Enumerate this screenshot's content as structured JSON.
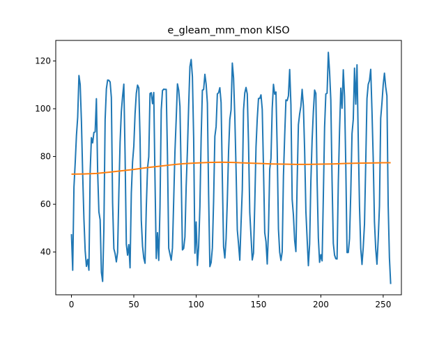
{
  "chart_data": {
    "type": "line",
    "title": "e_gleam_mm_mon KISO",
    "xlabel": "",
    "ylabel": "",
    "xlim": [
      -12.6,
      264.6
    ],
    "ylim": [
      22.1,
      128.6
    ],
    "x_ticks": [
      0,
      50,
      100,
      150,
      200,
      250
    ],
    "y_ticks": [
      40,
      60,
      80,
      100,
      120
    ],
    "grid": false,
    "legend": "none",
    "series": [
      {
        "color": "#1f77b4",
        "points": [
          [
            0,
            47.5
          ],
          [
            1,
            32.4
          ],
          [
            2,
            67.2
          ],
          [
            3,
            77.3
          ],
          [
            4,
            88.8
          ],
          [
            5,
            96.5
          ],
          [
            6,
            113.9
          ],
          [
            7,
            110.1
          ],
          [
            8,
            94.6
          ],
          [
            9,
            72.6
          ],
          [
            10,
            53.8
          ],
          [
            11,
            40.5
          ],
          [
            12,
            34.0
          ],
          [
            13,
            36.9
          ],
          [
            14,
            32.4
          ],
          [
            15,
            73.7
          ],
          [
            16,
            87.9
          ],
          [
            17,
            85.7
          ],
          [
            18,
            90.1
          ],
          [
            19,
            90.3
          ],
          [
            20,
            104.2
          ],
          [
            21,
            73.7
          ],
          [
            22,
            56.8
          ],
          [
            23,
            53.5
          ],
          [
            24,
            31.5
          ],
          [
            25,
            27.7
          ],
          [
            26,
            49.6
          ],
          [
            27,
            95.4
          ],
          [
            28,
            108.3
          ],
          [
            29,
            112.0
          ],
          [
            30,
            111.9
          ],
          [
            31,
            111.2
          ],
          [
            32,
            104.7
          ],
          [
            33,
            60.5
          ],
          [
            34,
            41.4
          ],
          [
            35,
            39.3
          ],
          [
            36,
            35.9
          ],
          [
            37,
            39.9
          ],
          [
            38,
            64.6
          ],
          [
            39,
            86.0
          ],
          [
            40,
            98.8
          ],
          [
            41,
            105.2
          ],
          [
            42,
            110.3
          ],
          [
            43,
            80.6
          ],
          [
            44,
            43.3
          ],
          [
            45,
            38.7
          ],
          [
            46,
            43.1
          ],
          [
            47,
            33.4
          ],
          [
            48,
            64.6
          ],
          [
            49,
            77.7
          ],
          [
            50,
            84.3
          ],
          [
            51,
            97.8
          ],
          [
            52,
            106.4
          ],
          [
            53,
            109.9
          ],
          [
            54,
            108.7
          ],
          [
            55,
            88.0
          ],
          [
            56,
            53.3
          ],
          [
            57,
            42.4
          ],
          [
            58,
            37.4
          ],
          [
            59,
            35.3
          ],
          [
            60,
            58.4
          ],
          [
            61,
            75.0
          ],
          [
            62,
            79.9
          ],
          [
            63,
            106.4
          ],
          [
            64,
            106.7
          ],
          [
            65,
            102.1
          ],
          [
            66,
            106.8
          ],
          [
            67,
            70.2
          ],
          [
            68,
            37.3
          ],
          [
            69,
            48.1
          ],
          [
            70,
            36.5
          ],
          [
            71,
            58.7
          ],
          [
            72,
            99.5
          ],
          [
            73,
            107.6
          ],
          [
            74,
            108.2
          ],
          [
            75,
            108.1
          ],
          [
            76,
            108.1
          ],
          [
            77,
            80.4
          ],
          [
            78,
            41.6
          ],
          [
            79,
            39.1
          ],
          [
            80,
            36.6
          ],
          [
            81,
            41.7
          ],
          [
            82,
            61.9
          ],
          [
            83,
            82.1
          ],
          [
            84,
            95.7
          ],
          [
            85,
            110.4
          ],
          [
            86,
            107.8
          ],
          [
            87,
            101.0
          ],
          [
            88,
            71.9
          ],
          [
            89,
            40.9
          ],
          [
            90,
            41.5
          ],
          [
            91,
            46.3
          ],
          [
            92,
            67.6
          ],
          [
            93,
            82.6
          ],
          [
            94,
            101.3
          ],
          [
            95,
            117.6
          ],
          [
            96,
            120.6
          ],
          [
            97,
            113.4
          ],
          [
            98,
            87.7
          ],
          [
            99,
            39.5
          ],
          [
            100,
            52.6
          ],
          [
            101,
            34.4
          ],
          [
            102,
            42.2
          ],
          [
            103,
            59.0
          ],
          [
            104,
            87.6
          ],
          [
            105,
            107.8
          ],
          [
            106,
            108.0
          ],
          [
            107,
            114.4
          ],
          [
            108,
            110.3
          ],
          [
            109,
            102.4
          ],
          [
            110,
            63.9
          ],
          [
            111,
            33.9
          ],
          [
            112,
            35.6
          ],
          [
            113,
            41.7
          ],
          [
            114,
            61.5
          ],
          [
            115,
            88.4
          ],
          [
            116,
            92.5
          ],
          [
            117,
            106.2
          ],
          [
            118,
            106.7
          ],
          [
            119,
            108.8
          ],
          [
            120,
            102.6
          ],
          [
            121,
            71.1
          ],
          [
            122,
            42.2
          ],
          [
            123,
            37.5
          ],
          [
            124,
            45.5
          ],
          [
            125,
            61.8
          ],
          [
            126,
            82.1
          ],
          [
            127,
            95.5
          ],
          [
            128,
            99.5
          ],
          [
            129,
            119.1
          ],
          [
            130,
            112.9
          ],
          [
            131,
            96.8
          ],
          [
            132,
            74.7
          ],
          [
            133,
            49.3
          ],
          [
            134,
            43.3
          ],
          [
            135,
            36.6
          ],
          [
            136,
            51.9
          ],
          [
            137,
            66.1
          ],
          [
            138,
            99.5
          ],
          [
            139,
            106.6
          ],
          [
            140,
            108.9
          ],
          [
            141,
            106.2
          ],
          [
            142,
            85.5
          ],
          [
            143,
            56.5
          ],
          [
            144,
            46.6
          ],
          [
            145,
            36.7
          ],
          [
            146,
            39.6
          ],
          [
            147,
            60.0
          ],
          [
            148,
            84.0
          ],
          [
            149,
            95.8
          ],
          [
            150,
            104.3
          ],
          [
            151,
            104.3
          ],
          [
            152,
            105.8
          ],
          [
            153,
            99.7
          ],
          [
            154,
            75.2
          ],
          [
            155,
            48.1
          ],
          [
            156,
            44.4
          ],
          [
            157,
            35.0
          ],
          [
            158,
            48.8
          ],
          [
            159,
            74.7
          ],
          [
            160,
            79.1
          ],
          [
            161,
            100.2
          ],
          [
            162,
            110.2
          ],
          [
            163,
            106.1
          ],
          [
            164,
            107.0
          ],
          [
            165,
            83.3
          ],
          [
            166,
            49.6
          ],
          [
            167,
            39.9
          ],
          [
            168,
            36.5
          ],
          [
            169,
            40.1
          ],
          [
            170,
            71.8
          ],
          [
            171,
            88.6
          ],
          [
            172,
            103.7
          ],
          [
            173,
            103.4
          ],
          [
            174,
            105.4
          ],
          [
            175,
            116.4
          ],
          [
            176,
            101.7
          ],
          [
            177,
            62.0
          ],
          [
            178,
            55.5
          ],
          [
            179,
            44.9
          ],
          [
            180,
            40.2
          ],
          [
            181,
            69.4
          ],
          [
            182,
            93.3
          ],
          [
            183,
            97.8
          ],
          [
            184,
            101.1
          ],
          [
            185,
            108.1
          ],
          [
            186,
            101.2
          ],
          [
            187,
            82.5
          ],
          [
            188,
            57.1
          ],
          [
            189,
            45.5
          ],
          [
            190,
            34.3
          ],
          [
            191,
            43.4
          ],
          [
            192,
            69.8
          ],
          [
            193,
            86.9
          ],
          [
            194,
            98.8
          ],
          [
            195,
            107.8
          ],
          [
            196,
            106.4
          ],
          [
            197,
            69.8
          ],
          [
            198,
            45.9
          ],
          [
            199,
            35.7
          ],
          [
            200,
            38.9
          ],
          [
            201,
            36.3
          ],
          [
            202,
            63.4
          ],
          [
            203,
            92.3
          ],
          [
            204,
            106.2
          ],
          [
            205,
            106.5
          ],
          [
            206,
            123.6
          ],
          [
            207,
            115.5
          ],
          [
            208,
            103.6
          ],
          [
            209,
            69.8
          ],
          [
            210,
            43.6
          ],
          [
            211,
            38.7
          ],
          [
            212,
            37.2
          ],
          [
            213,
            37.1
          ],
          [
            214,
            69.0
          ],
          [
            215,
            91.0
          ],
          [
            216,
            108.6
          ],
          [
            217,
            100.2
          ],
          [
            218,
            116.3
          ],
          [
            219,
            105.0
          ],
          [
            220,
            76.4
          ],
          [
            221,
            39.8
          ],
          [
            222,
            39.8
          ],
          [
            223,
            45.6
          ],
          [
            224,
            64.8
          ],
          [
            225,
            89.6
          ],
          [
            226,
            95.5
          ],
          [
            227,
            117.0
          ],
          [
            228,
            101.9
          ],
          [
            229,
            118.4
          ],
          [
            230,
            87.3
          ],
          [
            231,
            59.1
          ],
          [
            232,
            41.5
          ],
          [
            233,
            34.8
          ],
          [
            234,
            42.0
          ],
          [
            235,
            51.7
          ],
          [
            236,
            77.4
          ],
          [
            237,
            104.3
          ],
          [
            238,
            110.2
          ],
          [
            239,
            111.8
          ],
          [
            240,
            116.5
          ],
          [
            241,
            99.2
          ],
          [
            242,
            79.1
          ],
          [
            243,
            52.6
          ],
          [
            244,
            41.4
          ],
          [
            245,
            34.9
          ],
          [
            246,
            45.5
          ],
          [
            247,
            59.2
          ],
          [
            248,
            96.0
          ],
          [
            249,
            102.4
          ],
          [
            250,
            110.0
          ],
          [
            251,
            114.9
          ],
          [
            252,
            109.2
          ],
          [
            253,
            105.4
          ],
          [
            254,
            59.6
          ],
          [
            255,
            37.6
          ],
          [
            256,
            26.6
          ]
        ]
      },
      {
        "color": "#ff7f0e",
        "points": [
          [
            0,
            72.6
          ],
          [
            10,
            72.7
          ],
          [
            20,
            72.9
          ],
          [
            30,
            73.4
          ],
          [
            40,
            74.0
          ],
          [
            50,
            74.6
          ],
          [
            60,
            75.3
          ],
          [
            70,
            75.9
          ],
          [
            80,
            76.5
          ],
          [
            90,
            77.0
          ],
          [
            100,
            77.3
          ],
          [
            110,
            77.5
          ],
          [
            120,
            77.6
          ],
          [
            130,
            77.5
          ],
          [
            140,
            77.3
          ],
          [
            150,
            77.1
          ],
          [
            160,
            76.9
          ],
          [
            170,
            76.8
          ],
          [
            180,
            76.7
          ],
          [
            190,
            76.7
          ],
          [
            200,
            76.8
          ],
          [
            210,
            76.9
          ],
          [
            220,
            77.1
          ],
          [
            230,
            77.2
          ],
          [
            240,
            77.3
          ],
          [
            250,
            77.4
          ],
          [
            256,
            77.4
          ]
        ]
      }
    ]
  }
}
